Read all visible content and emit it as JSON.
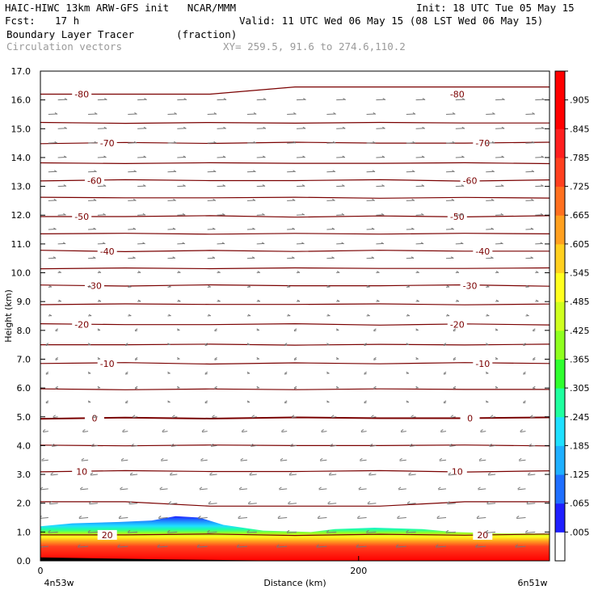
{
  "header": {
    "title_left": "HAIC-HIWC 13km ARW-GFS init   NCAR/MMM",
    "init": "Init: 18 UTC Tue 05 May 15",
    "fcst_label": "Fcst:",
    "fcst_value": "17 h",
    "valid": "Valid: 11 UTC Wed 06 May 15 (08 LST Wed 06 May 15)",
    "field": "Boundary Layer Tracer",
    "units": "(fraction)",
    "vectors": "Circulation vectors",
    "xy": "XY= 259.5, 91.6 to 274.6,110.2"
  },
  "colors": {
    "contour": "#7a0000",
    "vector": "#777777"
  },
  "chart_data": {
    "type": "heatmap",
    "title": "Boundary Layer Tracer",
    "ylabel": "Height (km)",
    "xlabel": "Distance (km)",
    "xlim": [
      0,
      320
    ],
    "ylim": [
      0,
      17
    ],
    "x_ticks": [
      0,
      200
    ],
    "x_tick_labels": [
      "0",
      "200"
    ],
    "x_endpoints": [
      "4n53w",
      "6n51w"
    ],
    "y_ticks": [
      0.0,
      1.0,
      2.0,
      3.0,
      4.0,
      5.0,
      6.0,
      7.0,
      8.0,
      9.0,
      10.0,
      11.0,
      12.0,
      13.0,
      14.0,
      15.0,
      16.0,
      17.0
    ],
    "y_tick_labels": [
      "0.0",
      "1.0",
      "2.0",
      "3.0",
      "4.0",
      "5.0",
      "6.0",
      "7.0",
      "8.0",
      "9.0",
      "10.0",
      "11.0",
      "12.0",
      "13.0",
      "14.0",
      "15.0",
      "16.0",
      "17.0"
    ],
    "colorbar": {
      "labels": [
        ".005",
        ".065",
        ".125",
        ".185",
        ".245",
        ".305",
        ".365",
        ".425",
        ".485",
        ".545",
        ".605",
        ".665",
        ".725",
        ".785",
        ".845",
        ".905"
      ],
      "colors": [
        "#ffffff",
        "#1f1fff",
        "#1f6fff",
        "#1fb0ff",
        "#1fe0ff",
        "#1fff9f",
        "#2fff2f",
        "#8fff1f",
        "#cfff1f",
        "#ffff1f",
        "#ffd01f",
        "#ffa01f",
        "#ff701f",
        "#ff401f",
        "#ff1f1f",
        "#ff0000",
        "#ff0000"
      ]
    },
    "temperature_contours": [
      {
        "label": "-80",
        "height": 16.2
      },
      {
        "label": "",
        "height": 15.2
      },
      {
        "label": "-70",
        "height": 14.5
      },
      {
        "label": "",
        "height": 13.8
      },
      {
        "label": "-60",
        "height": 13.2
      },
      {
        "label": "",
        "height": 12.6
      },
      {
        "label": "-50",
        "height": 11.95
      },
      {
        "label": "",
        "height": 11.35
      },
      {
        "label": "-40",
        "height": 10.75
      },
      {
        "label": "",
        "height": 10.15
      },
      {
        "label": "-30",
        "height": 9.55
      },
      {
        "label": "",
        "height": 8.9
      },
      {
        "label": "-20",
        "height": 8.2
      },
      {
        "label": "",
        "height": 7.5
      },
      {
        "label": "-10",
        "height": 6.85
      },
      {
        "label": "",
        "height": 5.95
      },
      {
        "label": "0",
        "height": 4.95
      },
      {
        "label": "",
        "height": 4.0
      },
      {
        "label": "10",
        "height": 3.1
      },
      {
        "label": "",
        "height": 2.05
      },
      {
        "label": "20",
        "height": 0.9
      }
    ]
  }
}
